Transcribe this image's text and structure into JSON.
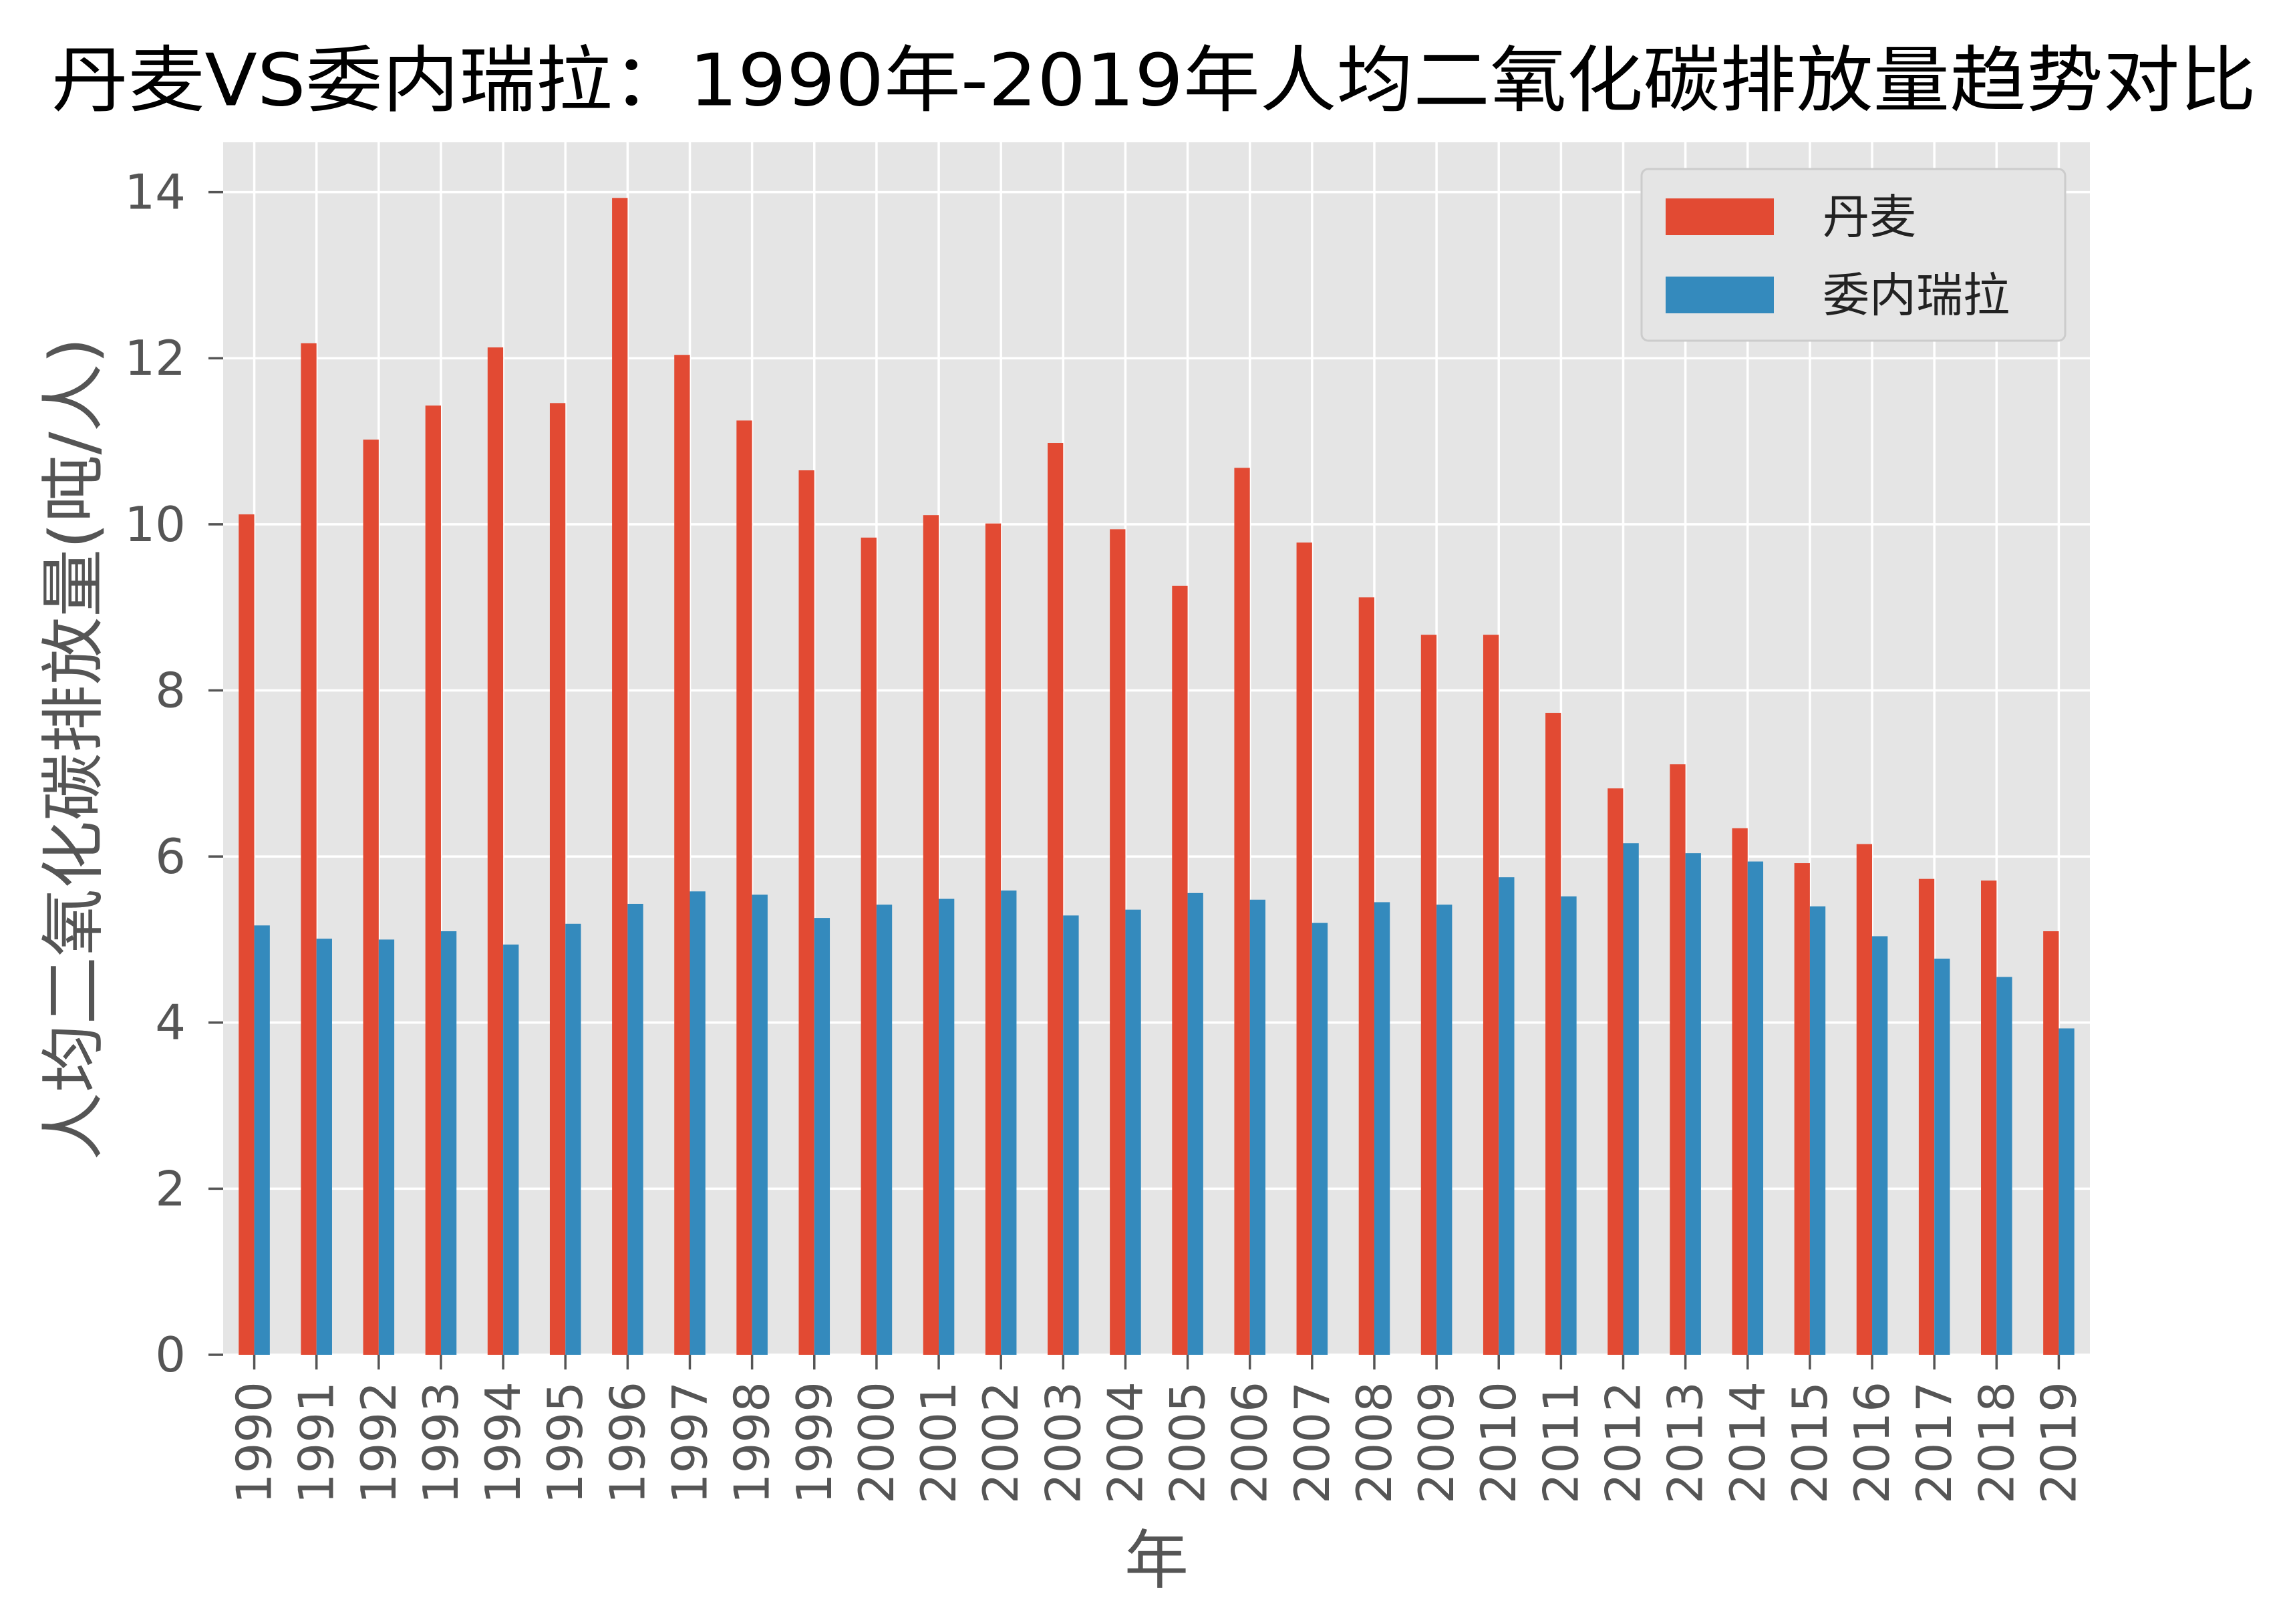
{
  "chart_data": {
    "type": "bar",
    "title": "丹麦VS委内瑞拉：1990年-2019年人均二氧化碳排放量趋势对比",
    "xlabel": "年",
    "ylabel": "人均二氧化碳排放量(吨/人)",
    "categories": [
      "1990",
      "1991",
      "1992",
      "1993",
      "1994",
      "1995",
      "1996",
      "1997",
      "1998",
      "1999",
      "2000",
      "2001",
      "2002",
      "2003",
      "2004",
      "2005",
      "2006",
      "2007",
      "2008",
      "2009",
      "2010",
      "2011",
      "2012",
      "2013",
      "2014",
      "2015",
      "2016",
      "2017",
      "2018",
      "2019"
    ],
    "series": [
      {
        "name": "丹麦",
        "color": "#E24A33",
        "values": [
          10.12,
          12.18,
          11.02,
          11.43,
          12.13,
          11.46,
          13.93,
          12.04,
          11.25,
          10.65,
          9.84,
          10.11,
          10.01,
          10.98,
          9.94,
          9.26,
          10.68,
          9.78,
          9.12,
          8.67,
          8.67,
          7.73,
          6.82,
          7.11,
          6.34,
          5.92,
          6.15,
          5.73,
          5.71,
          5.1
        ]
      },
      {
        "name": "委内瑞拉",
        "color": "#348ABD",
        "values": [
          5.17,
          5.01,
          5.0,
          5.1,
          4.94,
          5.19,
          5.43,
          5.58,
          5.54,
          5.26,
          5.42,
          5.49,
          5.59,
          5.29,
          5.36,
          5.56,
          5.48,
          5.2,
          5.45,
          5.42,
          5.75,
          5.52,
          6.16,
          6.04,
          5.94,
          5.4,
          5.04,
          4.77,
          4.55,
          3.93
        ]
      }
    ],
    "ylim": [
      0,
      14.6
    ],
    "yticks": [
      0,
      2,
      4,
      6,
      8,
      10,
      12,
      14
    ],
    "grid": true,
    "legend_position": "top-right",
    "style": {
      "plot_background": "#E5E5E5",
      "grid_color": "#FFFFFF",
      "tick_color": "#555555",
      "legend_background": "#E5E5E5",
      "legend_border": "#CCCCCC"
    }
  }
}
